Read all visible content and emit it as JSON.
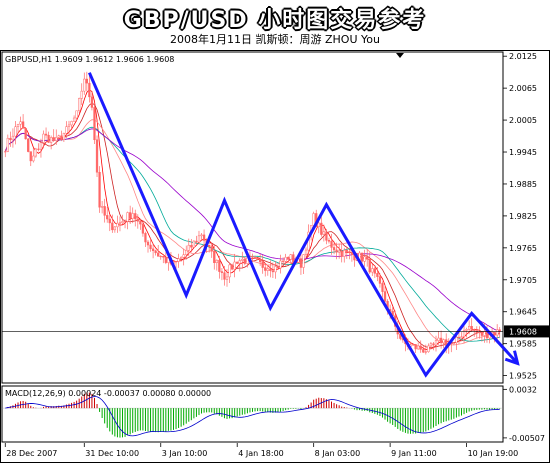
{
  "header": {
    "title": "GBP/USD 小时图交易参考",
    "subtitle": "2008年1月11日   凯斯顿：周游 ZHOU You"
  },
  "chart_data": {
    "type": "candlestick",
    "symbol_info": "GBPUSD,H1  1.9609 1.9612 1.9606 1.9608",
    "macd_info": "MACD(12,26,9) 0.00024 -0.00037 0.00080 0.00000",
    "last_price": "1.9608",
    "price_ticks": [
      2.0125,
      2.0065,
      2.0005,
      1.9945,
      1.9885,
      1.9825,
      1.9765,
      1.9705,
      1.9645,
      1.9585,
      1.9525
    ],
    "price_tick_labels": [
      "2.0125",
      "2.0065",
      "2.0005",
      "1.9945",
      "1.9885",
      "1.9825",
      "1.9765",
      "1.9705",
      "1.9645",
      "1.9585",
      "1.9525"
    ],
    "price_range": [
      1.9513,
      2.0131
    ],
    "macd_ticks": [
      0.0032,
      -0.00507
    ],
    "macd_tick_labels": [
      "0.0032",
      "-0.00507"
    ],
    "macd_range": [
      -0.0056,
      0.0036
    ],
    "x_ticks": [
      0,
      31,
      61,
      91,
      121,
      151,
      181
    ],
    "x_tick_labels": [
      "28 Dec 2007",
      "31 Dec 10:00",
      "3 Jan 10:00",
      "4 Jan 18:00",
      "8 Jan 03:00",
      "9 Jan 11:00",
      "10 Jan 19:00"
    ],
    "bar_count": 195,
    "close_anchors": [
      [
        0,
        1.9955
      ],
      [
        6,
        2.0005
      ],
      [
        10,
        1.9925
      ],
      [
        15,
        1.9975
      ],
      [
        20,
        1.9965
      ],
      [
        24,
        1.9985
      ],
      [
        28,
        2.0015
      ],
      [
        31,
        2.0085
      ],
      [
        34,
        2.0035
      ],
      [
        37,
        1.9845
      ],
      [
        41,
        1.9805
      ],
      [
        45,
        1.9812
      ],
      [
        50,
        1.9832
      ],
      [
        56,
        1.9772
      ],
      [
        60,
        1.9752
      ],
      [
        66,
        1.9732
      ],
      [
        72,
        1.9762
      ],
      [
        77,
        1.9792
      ],
      [
        81,
        1.9752
      ],
      [
        86,
        1.9712
      ],
      [
        91,
        1.9742
      ],
      [
        96,
        1.9742
      ],
      [
        101,
        1.9732
      ],
      [
        106,
        1.9728
      ],
      [
        111,
        1.9748
      ],
      [
        116,
        1.9735
      ],
      [
        121,
        1.9822
      ],
      [
        126,
        1.9778
      ],
      [
        131,
        1.9758
      ],
      [
        136,
        1.9752
      ],
      [
        141,
        1.9745
      ],
      [
        146,
        1.9702
      ],
      [
        151,
        1.9642
      ],
      [
        156,
        1.9585
      ],
      [
        161,
        1.9578
      ],
      [
        166,
        1.9572
      ],
      [
        171,
        1.9592
      ],
      [
        176,
        1.9582
      ],
      [
        181,
        1.9618
      ],
      [
        186,
        1.9602
      ],
      [
        194,
        1.9608
      ]
    ],
    "zigzag": [
      [
        33,
        2.0094
      ],
      [
        71,
        1.9676
      ],
      [
        86,
        1.9854
      ],
      [
        104,
        1.9652
      ],
      [
        126,
        1.9846
      ],
      [
        165,
        1.9526
      ],
      [
        183,
        1.9642
      ],
      [
        201,
        1.9548
      ]
    ],
    "moving_averages": [
      {
        "period": 5,
        "color": "#ff0000"
      },
      {
        "period": 10,
        "color": "#cc2222"
      },
      {
        "period": 20,
        "color": "#ff8888"
      },
      {
        "period": 30,
        "color": "#00aa99"
      },
      {
        "period": 50,
        "color": "#9900cc"
      }
    ],
    "colors": {
      "candle": "#ff6666",
      "zigzag": "#1a1aff",
      "macd_hist_pos": "#cc0000",
      "macd_hist_neg": "#00aa00",
      "macd_signal": "#0000cc",
      "grid": "#000000"
    }
  }
}
